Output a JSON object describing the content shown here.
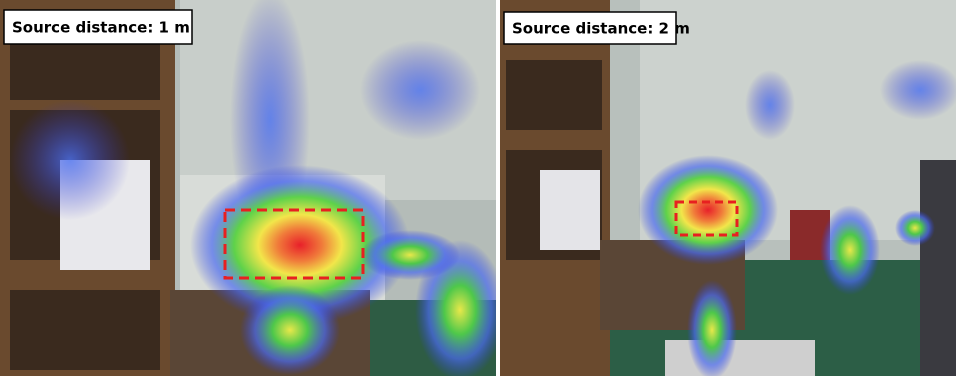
{
  "panels": [
    {
      "label": "Source distance: 1 m"
    },
    {
      "label": "Source distance: 2 m"
    }
  ]
}
